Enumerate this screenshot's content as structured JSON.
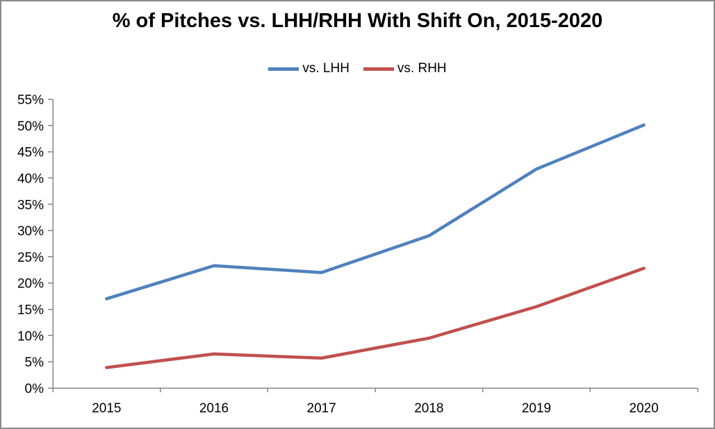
{
  "chart_data": {
    "type": "line",
    "title": "% of Pitches vs. LHH/RHH With Shift On, 2015-2020",
    "categories": [
      "2015",
      "2016",
      "2017",
      "2018",
      "2019",
      "2020"
    ],
    "series": [
      {
        "name": "vs. LHH",
        "color": "#4F81BD",
        "values": [
          17.0,
          23.3,
          22.0,
          29.0,
          41.7,
          50.1
        ]
      },
      {
        "name": "vs. RHH",
        "color": "#C0504D",
        "values": [
          3.9,
          6.5,
          5.7,
          9.5,
          15.5,
          22.8
        ]
      }
    ],
    "xlabel": "",
    "ylabel": "",
    "ylim": [
      0,
      55
    ],
    "ytick_step": 5,
    "ytick_suffix": "%",
    "grid": false,
    "legend_position": "top",
    "axis_color": "#868686",
    "text_color": "#000000",
    "background_color": "#ffffff"
  }
}
